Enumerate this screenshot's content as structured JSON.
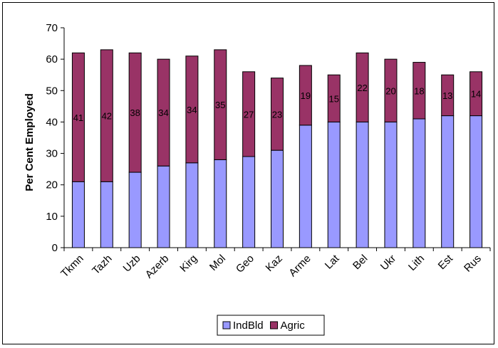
{
  "chart_data": {
    "type": "bar",
    "stacked": true,
    "categories": [
      "Tkmn",
      "Tazh",
      "Uzb",
      "Azerb",
      "Kirg",
      "Mol",
      "Geo",
      "Kaz",
      "Arme",
      "Lat",
      "Bel",
      "Ukr",
      "Lith",
      "Est",
      "Rus"
    ],
    "series": [
      {
        "name": "IndBld",
        "color": "#9999ff",
        "values": [
          21,
          21,
          24,
          26,
          27,
          28,
          29,
          31,
          39,
          40,
          40,
          40,
          41,
          42,
          42
        ]
      },
      {
        "name": "Agric",
        "color": "#993366",
        "values": [
          41,
          42,
          38,
          34,
          34,
          35,
          27,
          23,
          19,
          15,
          22,
          20,
          18,
          13,
          14
        ]
      }
    ],
    "data_labels": [
      "41",
      "42",
      "38",
      "34",
      "34",
      "35",
      "27",
      "23",
      "19",
      "15",
      "22",
      "20",
      "18",
      "13",
      "14"
    ],
    "ylabel": "Per Cent Employed",
    "xlabel": "",
    "title": "",
    "ylim": [
      0,
      70
    ],
    "yticks": [
      "0",
      "10",
      "20",
      "30",
      "40",
      "50",
      "60",
      "70"
    ],
    "grid": false,
    "legend": "bottom"
  }
}
